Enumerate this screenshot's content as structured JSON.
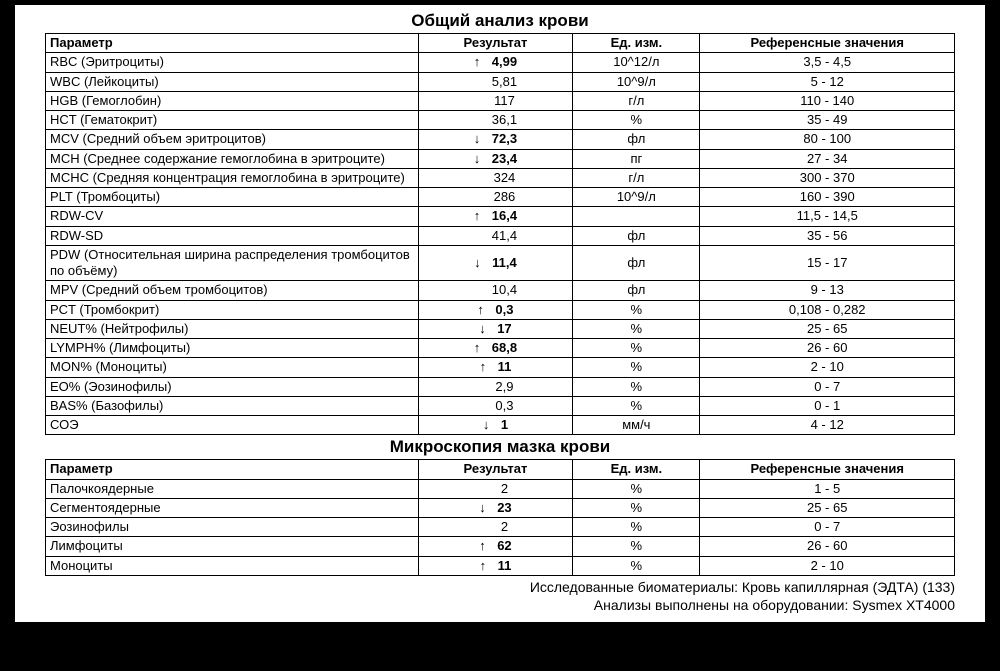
{
  "tables": [
    {
      "title": "Общий анализ крови",
      "headers": {
        "param": "Параметр",
        "result": "Результат",
        "unit": "Ед. изм.",
        "ref": "Референсные значения"
      },
      "rows": [
        {
          "param": "RBC (Эритроциты)",
          "arrow": "↑",
          "value": "4,99",
          "bold": true,
          "unit": "10^12/л",
          "ref": "3,5 - 4,5"
        },
        {
          "param": "WBC (Лейкоциты)",
          "arrow": "",
          "value": "5,81",
          "bold": false,
          "unit": "10^9/л",
          "ref": "5 - 12"
        },
        {
          "param": "HGB  (Гемоглобин)",
          "arrow": "",
          "value": "117",
          "bold": false,
          "unit": "г/л",
          "ref": "110 - 140"
        },
        {
          "param": "HCT  (Гематокрит)",
          "arrow": "",
          "value": "36,1",
          "bold": false,
          "unit": "%",
          "ref": "35 - 49"
        },
        {
          "param": "MCV  (Средний объем эритроцитов)",
          "arrow": "↓",
          "value": "72,3",
          "bold": true,
          "unit": "фл",
          "ref": "80 - 100"
        },
        {
          "param": "MCH (Среднее содержание гемоглобина в эритроците)",
          "arrow": "↓",
          "value": "23,4",
          "bold": true,
          "unit": "пг",
          "ref": "27 - 34"
        },
        {
          "param": "MCHC (Средняя концентрация гемоглобина в эритроците)",
          "arrow": "",
          "value": "324",
          "bold": false,
          "unit": "г/л",
          "ref": "300 - 370"
        },
        {
          "param": "PLT (Тромбоциты)",
          "arrow": "",
          "value": "286",
          "bold": false,
          "unit": "10^9/л",
          "ref": "160 - 390"
        },
        {
          "param": "RDW-CV",
          "arrow": "↑",
          "value": "16,4",
          "bold": true,
          "unit": "",
          "ref": "11,5 - 14,5"
        },
        {
          "param": "RDW-SD",
          "arrow": "",
          "value": "41,4",
          "bold": false,
          "unit": "фл",
          "ref": "35 - 56"
        },
        {
          "param": "PDW (Относительная ширина распределения тромбоцитов по объёму)",
          "arrow": "↓",
          "value": "11,4",
          "bold": true,
          "unit": "фл",
          "ref": "15 - 17"
        },
        {
          "param": "MPV (Средний объем тромбоцитов)",
          "arrow": "",
          "value": "10,4",
          "bold": false,
          "unit": "фл",
          "ref": "9 - 13"
        },
        {
          "param": "PCT  (Тромбокрит)",
          "arrow": "↑",
          "value": "0,3",
          "bold": true,
          "unit": "%",
          "ref": "0,108 - 0,282"
        },
        {
          "param": "NEUT% (Нейтрофилы)",
          "arrow": "↓",
          "value": "17",
          "bold": true,
          "unit": "%",
          "ref": "25 - 65"
        },
        {
          "param": "LYMPH% (Лимфоциты)",
          "arrow": "↑",
          "value": "68,8",
          "bold": true,
          "unit": "%",
          "ref": "26 - 60"
        },
        {
          "param": "MON% (Моноциты)",
          "arrow": "↑",
          "value": "11",
          "bold": true,
          "unit": "%",
          "ref": "2 - 10"
        },
        {
          "param": "EO% (Эозинофилы)",
          "arrow": "",
          "value": "2,9",
          "bold": false,
          "unit": "%",
          "ref": "0 - 7"
        },
        {
          "param": "BAS% (Базофилы)",
          "arrow": "",
          "value": "0,3",
          "bold": false,
          "unit": "%",
          "ref": "0 - 1"
        },
        {
          "param": "СОЭ",
          "arrow": "↓",
          "value": "1",
          "bold": true,
          "unit": "мм/ч",
          "ref": "4 - 12"
        }
      ]
    },
    {
      "title": "Микроскопия мазка крови",
      "headers": {
        "param": "Параметр",
        "result": "Результат",
        "unit": "Ед. изм.",
        "ref": "Референсные значения"
      },
      "rows": [
        {
          "param": "Палочкоядерные",
          "arrow": "",
          "value": "2",
          "bold": false,
          "unit": "%",
          "ref": "1 - 5"
        },
        {
          "param": "Сегментоядерные",
          "arrow": "↓",
          "value": "23",
          "bold": true,
          "unit": "%",
          "ref": "25 - 65"
        },
        {
          "param": "Эозинофилы",
          "arrow": "",
          "value": "2",
          "bold": false,
          "unit": "%",
          "ref": "0 - 7"
        },
        {
          "param": "Лимфоциты",
          "arrow": "↑",
          "value": "62",
          "bold": true,
          "unit": "%",
          "ref": "26 - 60"
        },
        {
          "param": "Моноциты",
          "arrow": "↑",
          "value": "11",
          "bold": true,
          "unit": "%",
          "ref": "2 - 10"
        }
      ]
    }
  ],
  "footer": {
    "line1": "Исследованные биоматериалы: Кровь капиллярная (ЭДТА) (133)",
    "line2": "Анализы выполнены на оборудовании: Sysmex XT4000"
  },
  "style": {
    "background_color": "#000000",
    "page_background": "#ffffff",
    "border_color": "#000000",
    "font_family": "Arial, sans-serif",
    "title_fontsize": 17,
    "cell_fontsize": 13,
    "footer_fontsize": 14,
    "column_widths_pct": {
      "param": 41,
      "result": 17,
      "unit": 14,
      "ref": 28
    }
  }
}
